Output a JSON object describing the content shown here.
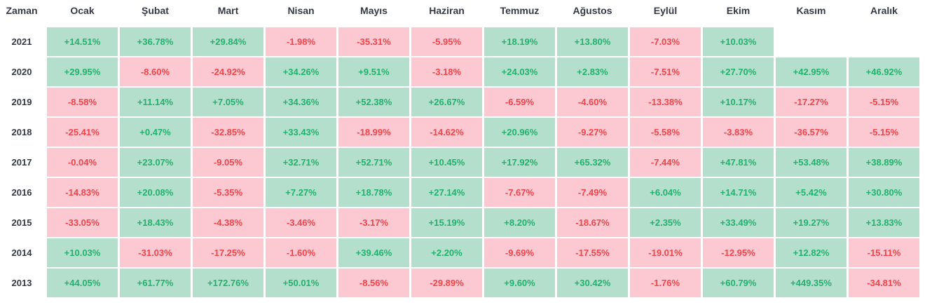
{
  "corner_label": "Zaman",
  "colors": {
    "positive_bg": "#b5dfcd",
    "negative_bg": "#fcc9d2",
    "positive_text": "#20b26c",
    "negative_text": "#ef454a"
  },
  "chart_data": {
    "type": "heatmap",
    "columns": [
      "Ocak",
      "Şubat",
      "Mart",
      "Nisan",
      "Mayıs",
      "Haziran",
      "Temmuz",
      "Ağustos",
      "Eylül",
      "Ekim",
      "Kasım",
      "Aralık"
    ],
    "rows": [
      {
        "year": "2021",
        "values": [
          "+14.51%",
          "+36.78%",
          "+29.84%",
          "-1.98%",
          "-35.31%",
          "-5.95%",
          "+18.19%",
          "+13.80%",
          "-7.03%",
          "+10.03%",
          null,
          null
        ]
      },
      {
        "year": "2020",
        "values": [
          "+29.95%",
          "-8.60%",
          "-24.92%",
          "+34.26%",
          "+9.51%",
          "-3.18%",
          "+24.03%",
          "+2.83%",
          "-7.51%",
          "+27.70%",
          "+42.95%",
          "+46.92%"
        ]
      },
      {
        "year": "2019",
        "values": [
          "-8.58%",
          "+11.14%",
          "+7.05%",
          "+34.36%",
          "+52.38%",
          "+26.67%",
          "-6.59%",
          "-4.60%",
          "-13.38%",
          "+10.17%",
          "-17.27%",
          "-5.15%"
        ]
      },
      {
        "year": "2018",
        "values": [
          "-25.41%",
          "+0.47%",
          "-32.85%",
          "+33.43%",
          "-18.99%",
          "-14.62%",
          "+20.96%",
          "-9.27%",
          "-5.58%",
          "-3.83%",
          "-36.57%",
          "-5.15%"
        ]
      },
      {
        "year": "2017",
        "values": [
          "-0.04%",
          "+23.07%",
          "-9.05%",
          "+32.71%",
          "+52.71%",
          "+10.45%",
          "+17.92%",
          "+65.32%",
          "-7.44%",
          "+47.81%",
          "+53.48%",
          "+38.89%"
        ]
      },
      {
        "year": "2016",
        "values": [
          "-14.83%",
          "+20.08%",
          "-5.35%",
          "+7.27%",
          "+18.78%",
          "+27.14%",
          "-7.67%",
          "-7.49%",
          "+6.04%",
          "+14.71%",
          "+5.42%",
          "+30.80%"
        ]
      },
      {
        "year": "2015",
        "values": [
          "-33.05%",
          "+18.43%",
          "-4.38%",
          "-3.46%",
          "-3.17%",
          "+15.19%",
          "+8.20%",
          "-18.67%",
          "+2.35%",
          "+33.49%",
          "+19.27%",
          "+13.83%"
        ]
      },
      {
        "year": "2014",
        "values": [
          "+10.03%",
          "-31.03%",
          "-17.25%",
          "-1.60%",
          "+39.46%",
          "+2.20%",
          "-9.69%",
          "-17.55%",
          "-19.01%",
          "-12.95%",
          "+12.82%",
          "-15.11%"
        ]
      },
      {
        "year": "2013",
        "values": [
          "+44.05%",
          "+61.77%",
          "+172.76%",
          "+50.01%",
          "-8.56%",
          "-29.89%",
          "+9.60%",
          "+30.42%",
          "-1.76%",
          "+60.79%",
          "+449.35%",
          "-34.81%"
        ]
      }
    ]
  }
}
